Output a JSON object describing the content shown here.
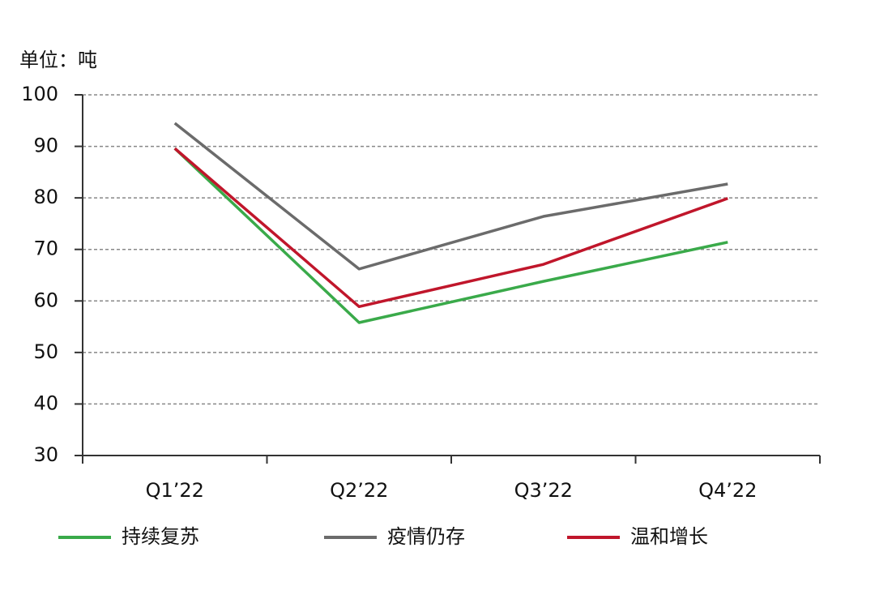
{
  "chart_data": {
    "type": "line",
    "unit_label": "单位：吨",
    "categories": [
      "Q1’22",
      "Q2’22",
      "Q3’22",
      "Q4’22"
    ],
    "series": [
      {
        "name": "持续复苏",
        "color": "#3aaa4a",
        "values": [
          89.6,
          55.8,
          63.8,
          71.4
        ]
      },
      {
        "name": "疫情仍存",
        "color": "#6b6b6b",
        "values": [
          94.5,
          66.2,
          76.4,
          82.7
        ]
      },
      {
        "name": "温和增长",
        "color": "#c0162b",
        "values": [
          89.6,
          58.9,
          67.1,
          79.9
        ]
      }
    ],
    "ylim": [
      30,
      100
    ],
    "yticks": [
      30,
      40,
      50,
      60,
      70,
      80,
      90,
      100
    ],
    "grid": true,
    "legend": "bottom"
  }
}
